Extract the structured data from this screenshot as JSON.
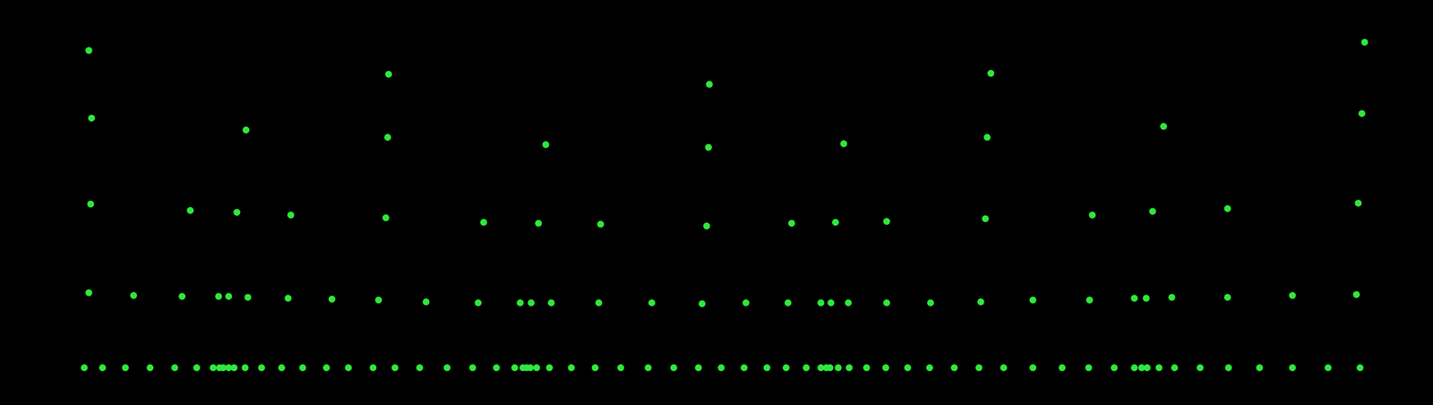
{
  "chart_data": {
    "type": "scatter",
    "x": [
      92,
      112,
      137,
      164,
      191,
      215,
      233,
      240,
      244,
      250,
      256,
      268,
      286,
      308,
      331,
      357,
      381,
      408,
      432,
      459,
      489,
      517,
      543,
      563,
      572,
      576,
      580,
      587,
      601,
      625,
      651,
      679,
      709,
      737,
      764,
      789,
      814,
      839,
      860,
      882,
      898,
      904,
      908,
      917,
      929,
      948,
      969,
      993,
      1017,
      1044,
      1071,
      1098,
      1130,
      1162,
      1191,
      1219,
      1241,
      1249,
      1255,
      1268,
      1285,
      1313,
      1344,
      1378,
      1414,
      1453,
      1488,
      97,
      146,
      199,
      239,
      250,
      271,
      315,
      363,
      414,
      466,
      523,
      569,
      581,
      603,
      655,
      713,
      768,
      816,
      862,
      898,
      909,
      928,
      970,
      1018,
      1073,
      1130,
      1192,
      1241,
      1254,
      1282,
      1343,
      1414,
      1484,
      99,
      208,
      259,
      318,
      422,
      529,
      589,
      657,
      773,
      866,
      914,
      970,
      1078,
      1195,
      1261,
      1343,
      1486,
      100,
      269,
      424,
      597,
      775,
      923,
      1080,
      1273,
      1490,
      97,
      425,
      776,
      1084,
      1493
    ],
    "y": [
      41,
      41,
      41,
      41,
      41,
      41,
      41,
      41,
      41,
      41,
      41,
      41,
      41,
      41,
      41,
      41,
      41,
      41,
      41,
      41,
      41,
      41,
      41,
      41,
      41,
      41,
      41,
      41,
      41,
      41,
      41,
      41,
      41,
      41,
      41,
      41,
      41,
      41,
      41,
      41,
      41,
      41,
      41,
      41,
      41,
      41,
      41,
      41,
      41,
      41,
      41,
      41,
      41,
      41,
      41,
      41,
      41,
      41,
      41,
      41,
      41,
      41,
      41,
      41,
      41,
      41,
      41,
      123,
      120,
      119,
      119,
      119,
      118,
      117,
      116,
      115,
      113,
      112,
      112,
      112,
      112,
      112,
      112,
      111,
      112,
      112,
      112,
      112,
      112,
      112,
      112,
      113,
      115,
      115,
      117,
      117,
      118,
      118,
      120,
      121,
      220,
      213,
      211,
      208,
      205,
      200,
      199,
      198,
      196,
      199,
      200,
      201,
      204,
      208,
      212,
      215,
      221,
      314,
      301,
      293,
      285,
      282,
      286,
      293,
      305,
      319,
      388,
      362,
      351,
      363,
      397
    ],
    "xlim": [
      0,
      1568
    ],
    "ylim": [
      0,
      443
    ],
    "color": "#2ee83a",
    "marker": "circle",
    "tick_labels": false,
    "grid": false
  }
}
